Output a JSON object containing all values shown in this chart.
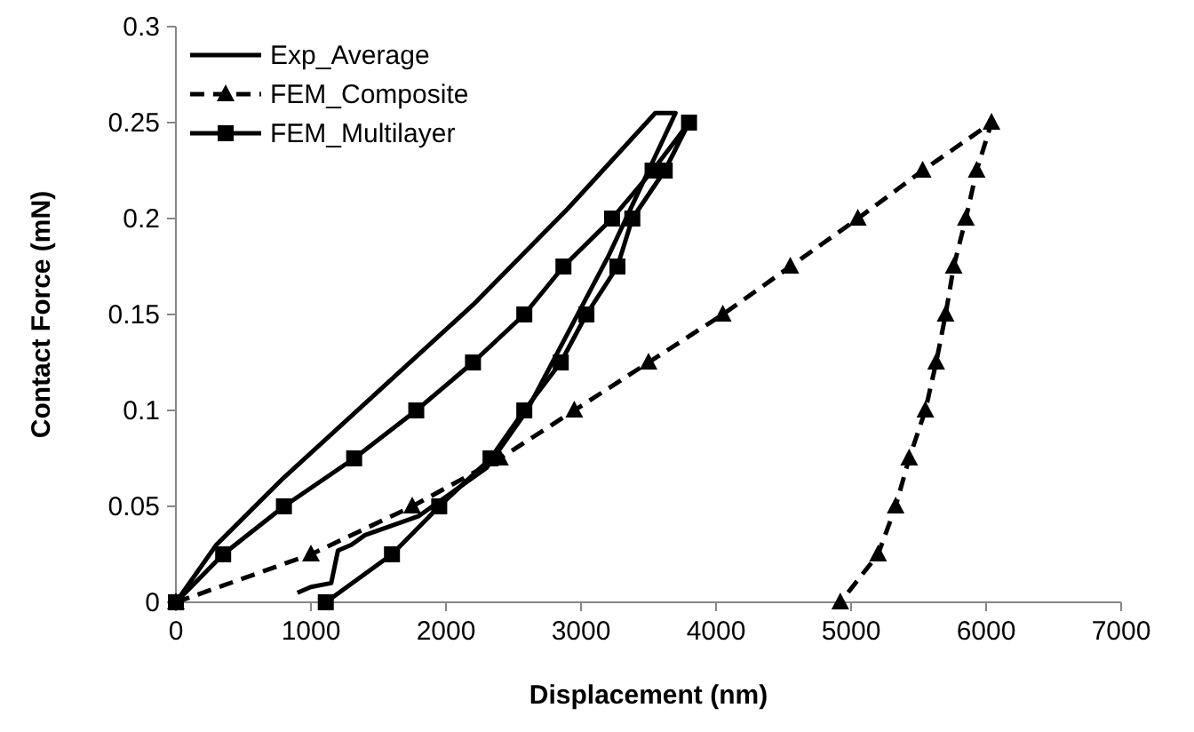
{
  "chart_data": {
    "type": "line",
    "xlabel": "Displacement (nm)",
    "ylabel": "Contact Force (mN)",
    "xlim": [
      0,
      7000
    ],
    "xticks": [
      0,
      1000,
      2000,
      3000,
      4000,
      5000,
      6000,
      7000
    ],
    "ylim": [
      0,
      0.3
    ],
    "yticks": [
      0,
      0.05,
      0.1,
      0.15,
      0.2,
      0.25,
      0.3
    ],
    "grid": false,
    "legend": "top left",
    "series": [
      {
        "name": "Exp_Average",
        "color": "#000000",
        "marker": "none",
        "line_style": "solid",
        "x": [
          0,
          300,
          800,
          1500,
          2200,
          2900,
          3550,
          3700,
          3500,
          3200,
          2900,
          2600,
          2300,
          1800,
          1400,
          1300,
          1200,
          1150,
          1000,
          900
        ],
        "values": [
          0,
          0.03,
          0.065,
          0.11,
          0.155,
          0.205,
          0.255,
          0.255,
          0.225,
          0.18,
          0.14,
          0.1,
          0.07,
          0.045,
          0.035,
          0.03,
          0.027,
          0.01,
          0.008,
          0.005
        ]
      },
      {
        "name": "FEM_Composite",
        "color": "#000000",
        "marker": "triangle",
        "line_style": "dashed",
        "x": [
          0,
          1000,
          1750,
          2400,
          2950,
          3500,
          4050,
          4550,
          5050,
          5530,
          6040,
          5930,
          5850,
          5760,
          5700,
          5630,
          5550,
          5430,
          5330,
          5200,
          4920
        ],
        "values": [
          0,
          0.025,
          0.05,
          0.075,
          0.1,
          0.125,
          0.15,
          0.175,
          0.2,
          0.225,
          0.25,
          0.225,
          0.2,
          0.175,
          0.15,
          0.125,
          0.1,
          0.075,
          0.05,
          0.025,
          0
        ]
      },
      {
        "name": "FEM_Multilayer",
        "color": "#000000",
        "marker": "square",
        "line_style": "solid",
        "x": [
          0,
          350,
          800,
          1320,
          1780,
          2200,
          2580,
          2870,
          3230,
          3530,
          3800,
          3620,
          3380,
          3270,
          3040,
          2850,
          2580,
          2330,
          1950,
          1600,
          1110
        ],
        "values": [
          0,
          0.025,
          0.05,
          0.075,
          0.1,
          0.125,
          0.15,
          0.175,
          0.2,
          0.225,
          0.25,
          0.225,
          0.2,
          0.175,
          0.15,
          0.125,
          0.1,
          0.075,
          0.05,
          0.025,
          0
        ]
      }
    ]
  }
}
